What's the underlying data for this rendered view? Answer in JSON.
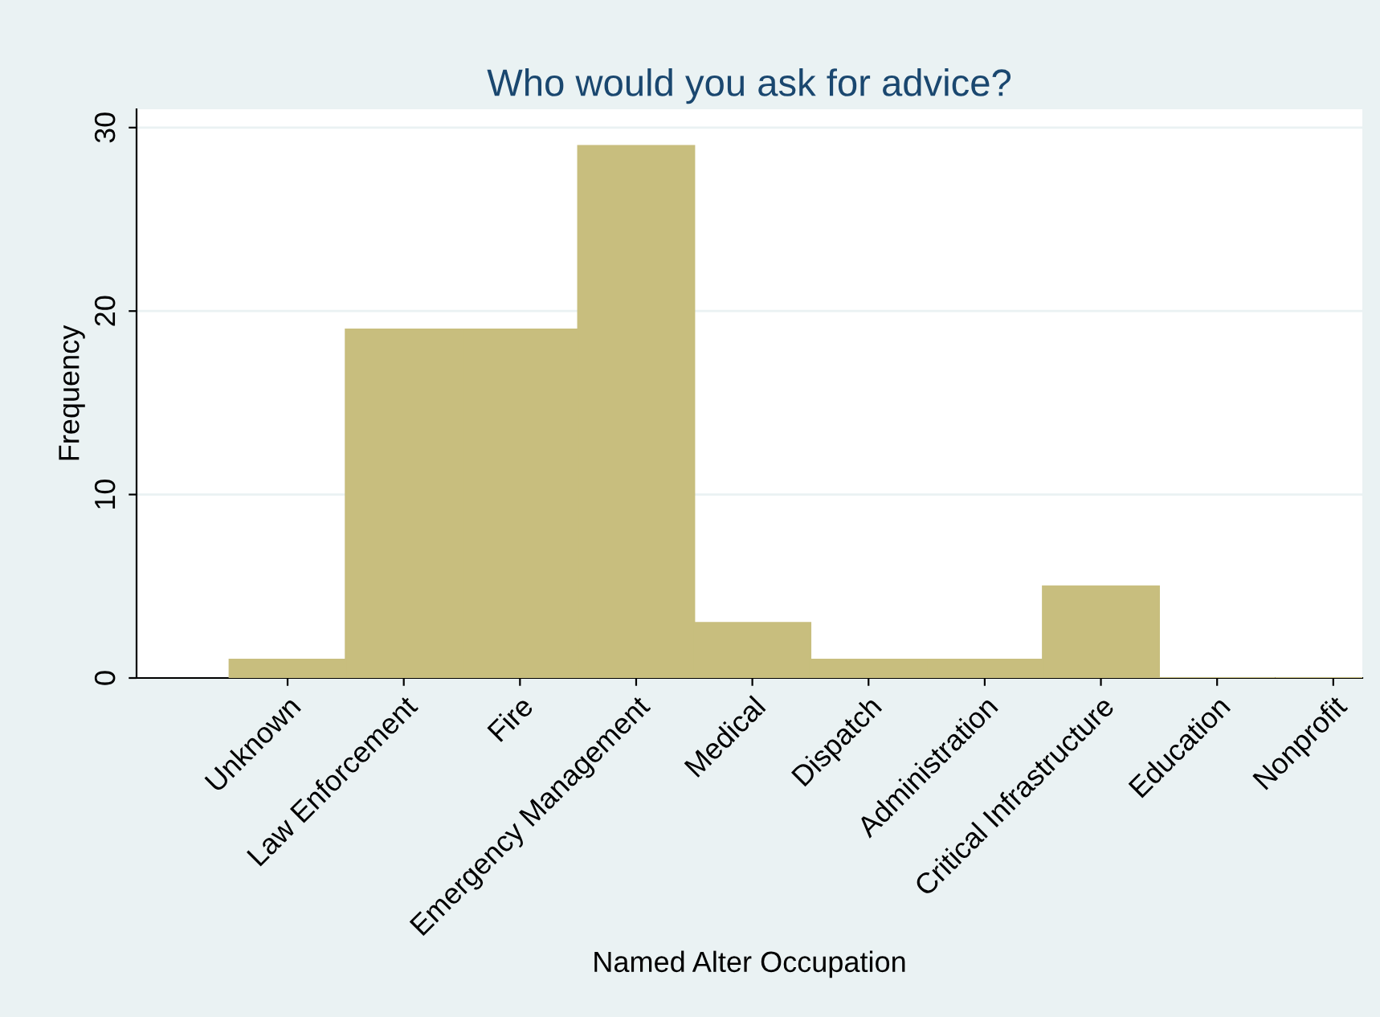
{
  "chart_data": {
    "type": "bar",
    "title": "Who would you ask for advice?",
    "xlabel": "Named Alter Occupation",
    "ylabel": "Frequency",
    "categories": [
      "Unknown",
      "Law Enforcement",
      "Fire",
      "Emergency Management",
      "Medical",
      "Dispatch",
      "Administration",
      "Critical Infrastructure",
      "Education",
      "Nonprofit"
    ],
    "values": [
      1,
      19,
      19,
      29,
      3,
      1,
      1,
      5,
      0,
      0
    ],
    "color": "#c8be7e",
    "ylim": [
      0,
      31
    ],
    "yticks": [
      0,
      10,
      20,
      30
    ],
    "grid": "y"
  }
}
